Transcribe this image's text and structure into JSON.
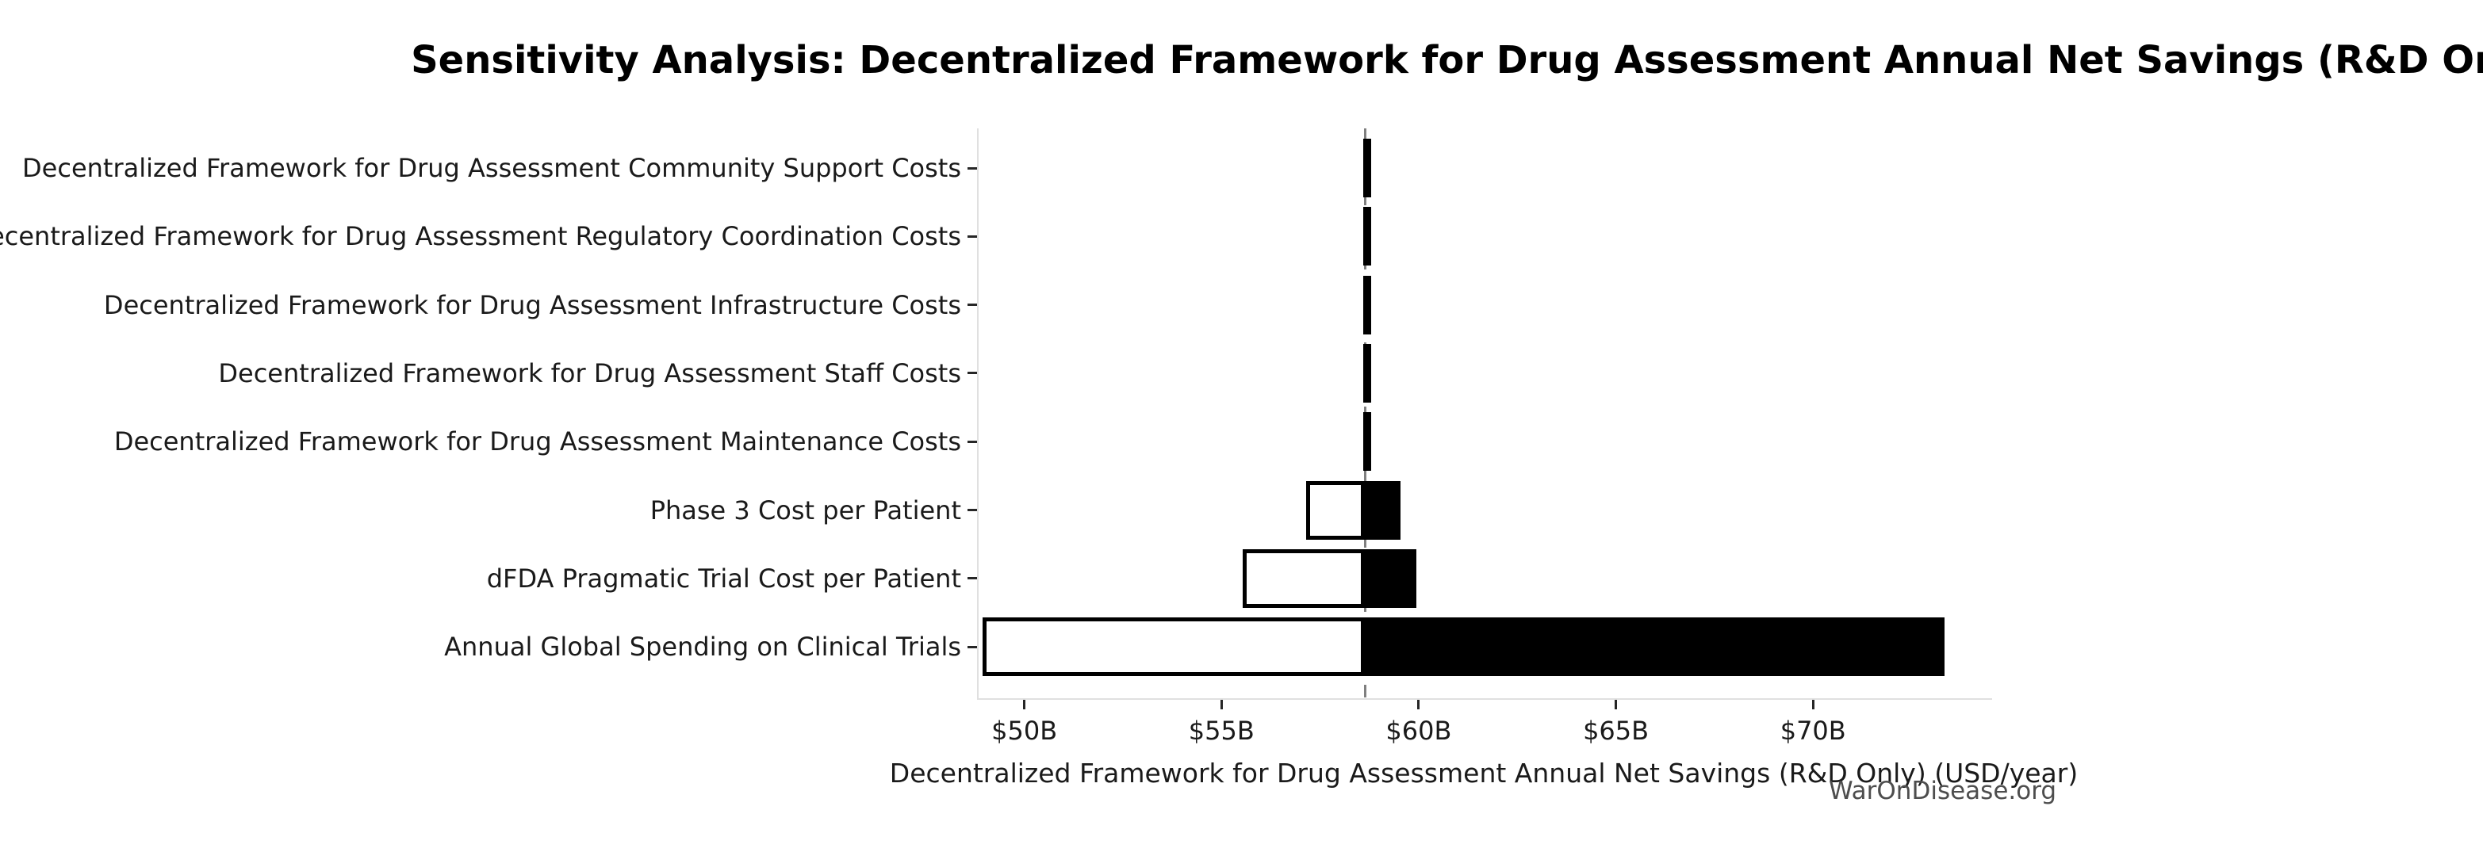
{
  "figure": {
    "watermark": "WarOnDisease.org"
  },
  "chart_data": {
    "type": "bar",
    "subtype": "tornado-sensitivity",
    "orientation": "horizontal",
    "title": "Sensitivity Analysis: Decentralized Framework for Drug Assessment Annual Net Savings (R&D Only)",
    "xlabel": "Decentralized Framework for Drug Assessment Annual Net Savings (R&D Only) (USD/year)",
    "unit": "USD billions per year",
    "xlim": [
      48.8,
      74.5
    ],
    "baseline_value": 58.6,
    "x_ticks": [
      {
        "value": 50,
        "label": "$50B"
      },
      {
        "value": 55,
        "label": "$55B"
      },
      {
        "value": 60,
        "label": "$60B"
      },
      {
        "value": 65,
        "label": "$65B"
      },
      {
        "value": 70,
        "label": "$70B"
      }
    ],
    "categories": [
      "Decentralized Framework for Drug Assessment Community Support Costs",
      "Decentralized Framework for Drug Assessment Regulatory Coordination Costs",
      "Decentralized Framework for Drug Assessment Infrastructure Costs",
      "Decentralized Framework for Drug Assessment Staff Costs",
      "Decentralized Framework for Drug Assessment Maintenance Costs",
      "Phase 3 Cost per Patient",
      "dFDA Pragmatic Trial Cost per Patient",
      "Annual Global Spending on Clinical Trials"
    ],
    "series": [
      {
        "name": "low-case (white bar, left of baseline)",
        "values": [
          58.55,
          58.55,
          58.55,
          58.55,
          58.55,
          57.1,
          55.5,
          48.9
        ]
      },
      {
        "name": "high-case (black bar, right of baseline)",
        "values": [
          58.65,
          58.65,
          58.65,
          58.65,
          58.65,
          59.5,
          59.9,
          73.3
        ]
      }
    ],
    "grid": false,
    "legend": false,
    "colors": {
      "low_fill": "#ffffff",
      "high_fill": "#000000",
      "bar_edge": "#000000",
      "baseline_line": "#7f7f7f",
      "spine": "#e0e0e0",
      "tick": "#262626",
      "text": "#1a1a1a",
      "watermark": "#4d4d4d",
      "background": "#ffffff"
    }
  }
}
